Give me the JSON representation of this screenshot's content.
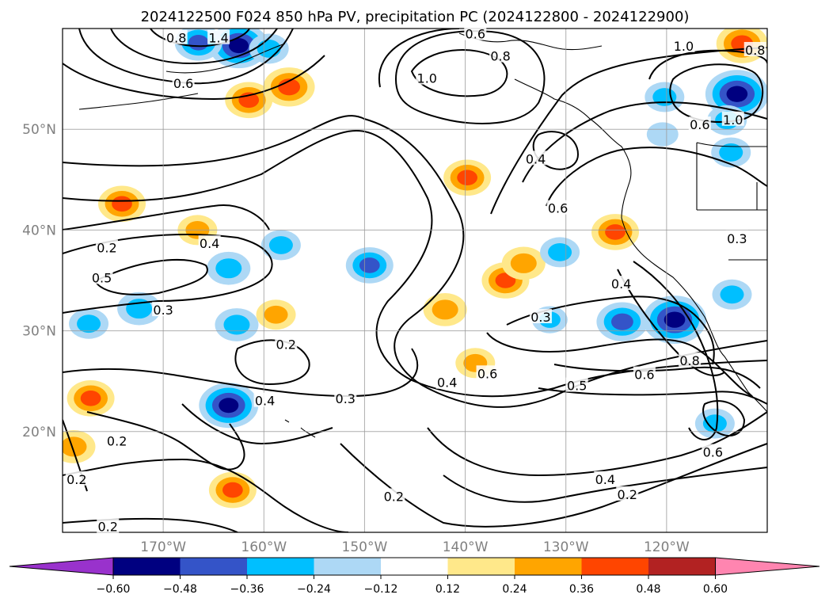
{
  "chart_data": {
    "type": "map-contour",
    "title": "2024122500 F024 850 hPa PV, precipitation PC (2024122800 - 2024122900)",
    "lon_range": [
      -180,
      -110
    ],
    "lat_range": [
      10,
      60
    ],
    "grid": true,
    "lat_ticks": [
      {
        "value": 20,
        "label": "20°N"
      },
      {
        "value": 30,
        "label": "30°N"
      },
      {
        "value": 40,
        "label": "40°N"
      },
      {
        "value": 50,
        "label": "50°N"
      }
    ],
    "lon_ticks": [
      {
        "value": -170,
        "label": "170°W"
      },
      {
        "value": -160,
        "label": "160°W"
      },
      {
        "value": -150,
        "label": "150°W"
      },
      {
        "value": -140,
        "label": "140°W"
      },
      {
        "value": -130,
        "label": "130°W"
      },
      {
        "value": -120,
        "label": "120°W"
      }
    ],
    "colorbar": {
      "colors": [
        "#9932cc",
        "#000080",
        "#3454c8",
        "#00bfff",
        "#add8f5",
        "#ffffff",
        "#ffe88a",
        "#ffa500",
        "#ff4500",
        "#b22222",
        "#ff85b0"
      ],
      "tick_labels": [
        "−0.60",
        "−0.48",
        "−0.36",
        "−0.24",
        "−0.12",
        "0.12",
        "0.24",
        "0.36",
        "0.48",
        "0.60"
      ]
    },
    "contour_labels": [
      {
        "text": "1.4",
        "lon": -164.5,
        "lat": 59
      },
      {
        "text": "0.8",
        "lon": -168.7,
        "lat": 59
      },
      {
        "text": "0.6",
        "lon": -168,
        "lat": 54.5
      },
      {
        "text": "0.6",
        "lon": -139,
        "lat": 59.4
      },
      {
        "text": "0.8",
        "lon": -136.5,
        "lat": 57.2
      },
      {
        "text": "1.0",
        "lon": -143.8,
        "lat": 55
      },
      {
        "text": "1.0",
        "lon": -118.3,
        "lat": 58.2
      },
      {
        "text": "0.8",
        "lon": -111.2,
        "lat": 57.8
      },
      {
        "text": "1.0",
        "lon": -113.4,
        "lat": 50.9
      },
      {
        "text": "0.6",
        "lon": -116.7,
        "lat": 50.4
      },
      {
        "text": "0.4",
        "lon": -133,
        "lat": 47
      },
      {
        "text": "0.6",
        "lon": -130.8,
        "lat": 42.1
      },
      {
        "text": "0.3",
        "lon": -113,
        "lat": 39.1
      },
      {
        "text": "0.2",
        "lon": -175.6,
        "lat": 38.2
      },
      {
        "text": "0.4",
        "lon": -165.4,
        "lat": 38.6
      },
      {
        "text": "0.5",
        "lon": -176.1,
        "lat": 35.2
      },
      {
        "text": "0.3",
        "lon": -170,
        "lat": 32
      },
      {
        "text": "0.4",
        "lon": -124.5,
        "lat": 34.6
      },
      {
        "text": "0.3",
        "lon": -132.5,
        "lat": 31.3
      },
      {
        "text": "0.2",
        "lon": -157.8,
        "lat": 28.6
      },
      {
        "text": "0.8",
        "lon": -117.7,
        "lat": 27
      },
      {
        "text": "0.4",
        "lon": -141.8,
        "lat": 24.8
      },
      {
        "text": "0.6",
        "lon": -137.8,
        "lat": 25.7
      },
      {
        "text": "0.6",
        "lon": -122.2,
        "lat": 25.6
      },
      {
        "text": "0.5",
        "lon": -128.9,
        "lat": 24.5
      },
      {
        "text": "0.4",
        "lon": -159.9,
        "lat": 23
      },
      {
        "text": "0.3",
        "lon": -151.9,
        "lat": 23.2
      },
      {
        "text": "0.2",
        "lon": -174.6,
        "lat": 19
      },
      {
        "text": "0.2",
        "lon": -178.6,
        "lat": 15.2
      },
      {
        "text": "0.6",
        "lon": -115.4,
        "lat": 17.9
      },
      {
        "text": "0.4",
        "lon": -126.1,
        "lat": 15.2
      },
      {
        "text": "0.2",
        "lon": -123.9,
        "lat": 13.7
      },
      {
        "text": "0.2",
        "lon": -147.1,
        "lat": 13.5
      },
      {
        "text": "0.2",
        "lon": -175.5,
        "lat": 10.5
      }
    ],
    "precip_patches": [
      {
        "lon": -162.5,
        "lat": 58.3,
        "value": -0.55
      },
      {
        "lon": -166.5,
        "lat": 58.6,
        "value": -0.4
      },
      {
        "lon": -159.5,
        "lat": 58,
        "value": -0.3
      },
      {
        "lon": -157.5,
        "lat": 54.2,
        "value": 0.45
      },
      {
        "lon": -161.5,
        "lat": 52.9,
        "value": 0.4
      },
      {
        "lon": -112.5,
        "lat": 58.5,
        "value": 0.45
      },
      {
        "lon": -113,
        "lat": 53.5,
        "value": -0.6
      },
      {
        "lon": -114,
        "lat": 50.9,
        "value": -0.3
      },
      {
        "lon": -120.2,
        "lat": 53.2,
        "value": -0.3
      },
      {
        "lon": -113.6,
        "lat": 47.7,
        "value": -0.3
      },
      {
        "lon": -120.4,
        "lat": 49.5,
        "value": -0.2
      },
      {
        "lon": -139.8,
        "lat": 45.2,
        "value": 0.4
      },
      {
        "lon": -174.1,
        "lat": 42.6,
        "value": 0.4
      },
      {
        "lon": -125.1,
        "lat": 39.8,
        "value": 0.4
      },
      {
        "lon": -136,
        "lat": 35,
        "value": 0.4
      },
      {
        "lon": -134.2,
        "lat": 36.7,
        "value": 0.35
      },
      {
        "lon": -130.6,
        "lat": 37.8,
        "value": -0.3
      },
      {
        "lon": -149.5,
        "lat": 36.5,
        "value": -0.4
      },
      {
        "lon": -158.3,
        "lat": 38.5,
        "value": -0.3
      },
      {
        "lon": -163.5,
        "lat": 36.2,
        "value": -0.35
      },
      {
        "lon": -172.4,
        "lat": 32.2,
        "value": -0.35
      },
      {
        "lon": -177.4,
        "lat": 30.7,
        "value": -0.3
      },
      {
        "lon": -162.7,
        "lat": 30.6,
        "value": -0.35
      },
      {
        "lon": -119.2,
        "lat": 31.1,
        "value": -0.6
      },
      {
        "lon": -124.4,
        "lat": 30.9,
        "value": -0.45
      },
      {
        "lon": -131.6,
        "lat": 31.1,
        "value": -0.25
      },
      {
        "lon": -113.5,
        "lat": 33.6,
        "value": -0.3
      },
      {
        "lon": -142,
        "lat": 32.1,
        "value": 0.35
      },
      {
        "lon": -158.8,
        "lat": 31.6,
        "value": 0.3
      },
      {
        "lon": -163.5,
        "lat": 22.6,
        "value": -0.55
      },
      {
        "lon": -177.2,
        "lat": 23.3,
        "value": 0.4
      },
      {
        "lon": -178.9,
        "lat": 18.5,
        "value": 0.35
      },
      {
        "lon": -163.1,
        "lat": 14.2,
        "value": 0.4
      },
      {
        "lon": -139,
        "lat": 26.8,
        "value": 0.3
      },
      {
        "lon": -115.2,
        "lat": 20.8,
        "value": -0.3
      },
      {
        "lon": -166.6,
        "lat": 40,
        "value": 0.3
      }
    ]
  }
}
